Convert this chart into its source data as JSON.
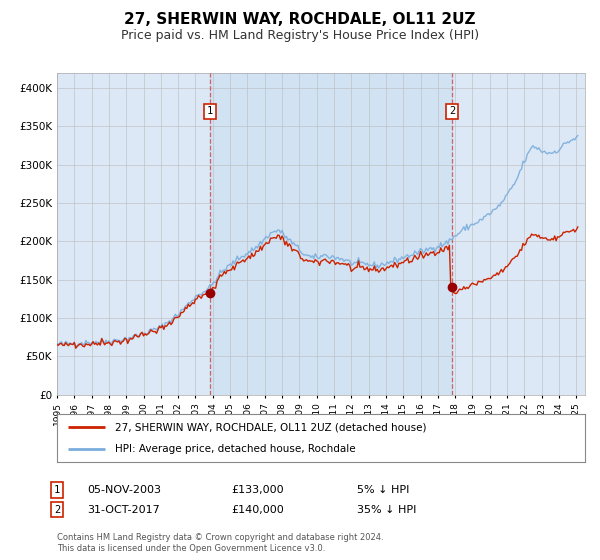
{
  "title": "27, SHERWIN WAY, ROCHDALE, OL11 2UZ",
  "subtitle": "Price paid vs. HM Land Registry's House Price Index (HPI)",
  "title_fontsize": 11,
  "subtitle_fontsize": 9,
  "background_color": "#ffffff",
  "plot_bg_color": "#dce8f5",
  "grid_color": "#bbbbbb",
  "hpi_color": "#7aaddd",
  "price_color": "#cc2200",
  "marker_color": "#990000",
  "vline_color": "#cc4444",
  "shade_color": "#dce8f5",
  "ylim": [
    0,
    420000
  ],
  "yticks": [
    0,
    50000,
    100000,
    150000,
    200000,
    250000,
    300000,
    350000,
    400000
  ],
  "ytick_labels": [
    "£0",
    "£50K",
    "£100K",
    "£150K",
    "£200K",
    "£250K",
    "£300K",
    "£350K",
    "£400K"
  ],
  "xstart_year": 1995,
  "xend_year": 2025,
  "sale1_date": 2003.84,
  "sale1_price": 133000,
  "sale1_label": "1",
  "sale1_info": "05-NOV-2003",
  "sale1_amount": "£133,000",
  "sale1_pct": "5% ↓ HPI",
  "sale2_date": 2017.83,
  "sale2_price": 140000,
  "sale2_label": "2",
  "sale2_info": "31-OCT-2017",
  "sale2_amount": "£140,000",
  "sale2_pct": "35% ↓ HPI",
  "legend_line1": "27, SHERWIN WAY, ROCHDALE, OL11 2UZ (detached house)",
  "legend_line2": "HPI: Average price, detached house, Rochdale",
  "footer": "Contains HM Land Registry data © Crown copyright and database right 2024.\nThis data is licensed under the Open Government Licence v3.0."
}
